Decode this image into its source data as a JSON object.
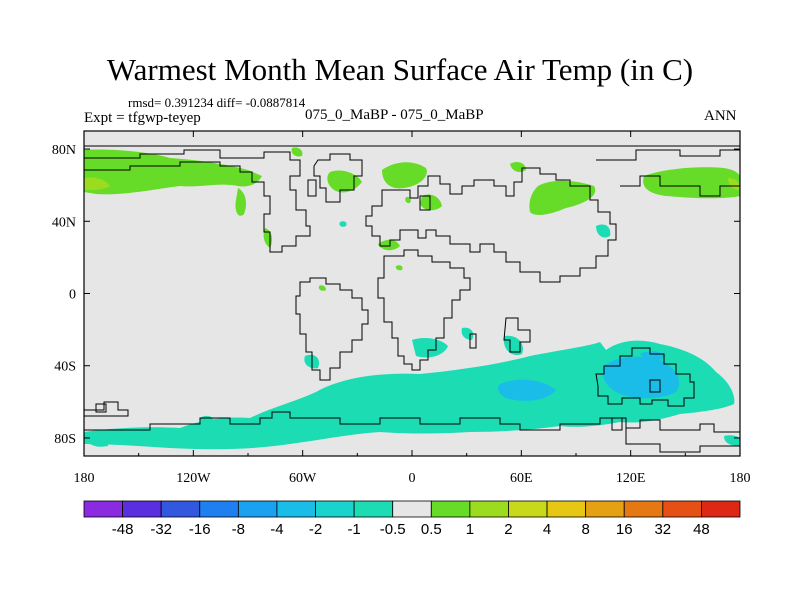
{
  "title": "Warmest Month Mean Surface Air Temp (in C)",
  "stats": "rmsd= 0.391234 diff= -0.0887814",
  "expt": "Expt = tfgwp-teyep",
  "subtitle": "075_0_MaBP - 075_0_MaBP",
  "season": "ANN",
  "map": {
    "lon_range": [
      -180,
      180
    ],
    "lat_range": [
      -90,
      90
    ],
    "x_ticks": [
      {
        "lon": -180,
        "label": "180"
      },
      {
        "lon": -120,
        "label": "120W"
      },
      {
        "lon": -60,
        "label": "60W"
      },
      {
        "lon": 0,
        "label": "0"
      },
      {
        "lon": 60,
        "label": "60E"
      },
      {
        "lon": 120,
        "label": "120E"
      },
      {
        "lon": 180,
        "label": "180"
      }
    ],
    "y_ticks": [
      {
        "lat": 80,
        "label": "80N"
      },
      {
        "lat": 40,
        "label": "40N"
      },
      {
        "lat": 0,
        "label": "0"
      },
      {
        "lat": -40,
        "label": "40S"
      },
      {
        "lat": -80,
        "label": "80S"
      }
    ],
    "background_color": "#e6e6e6",
    "coastline_color": "#000000"
  },
  "colorbar": {
    "colors": [
      "#8a2be2",
      "#5a2fe0",
      "#3358e0",
      "#1e80f0",
      "#1aa2f0",
      "#19bde8",
      "#18d4cc",
      "#1cdcb4",
      "#e6e6e6",
      "#66dc28",
      "#9cdc1e",
      "#c8d81a",
      "#e6c814",
      "#e6a014",
      "#e67814",
      "#e65014",
      "#dc2814"
    ],
    "labels": [
      "-48",
      "-32",
      "-16",
      "-8",
      "-4",
      "-2",
      "-1",
      "-0.5",
      "0.5",
      "1",
      "2",
      "4",
      "8",
      "16",
      "32",
      "48"
    ]
  }
}
